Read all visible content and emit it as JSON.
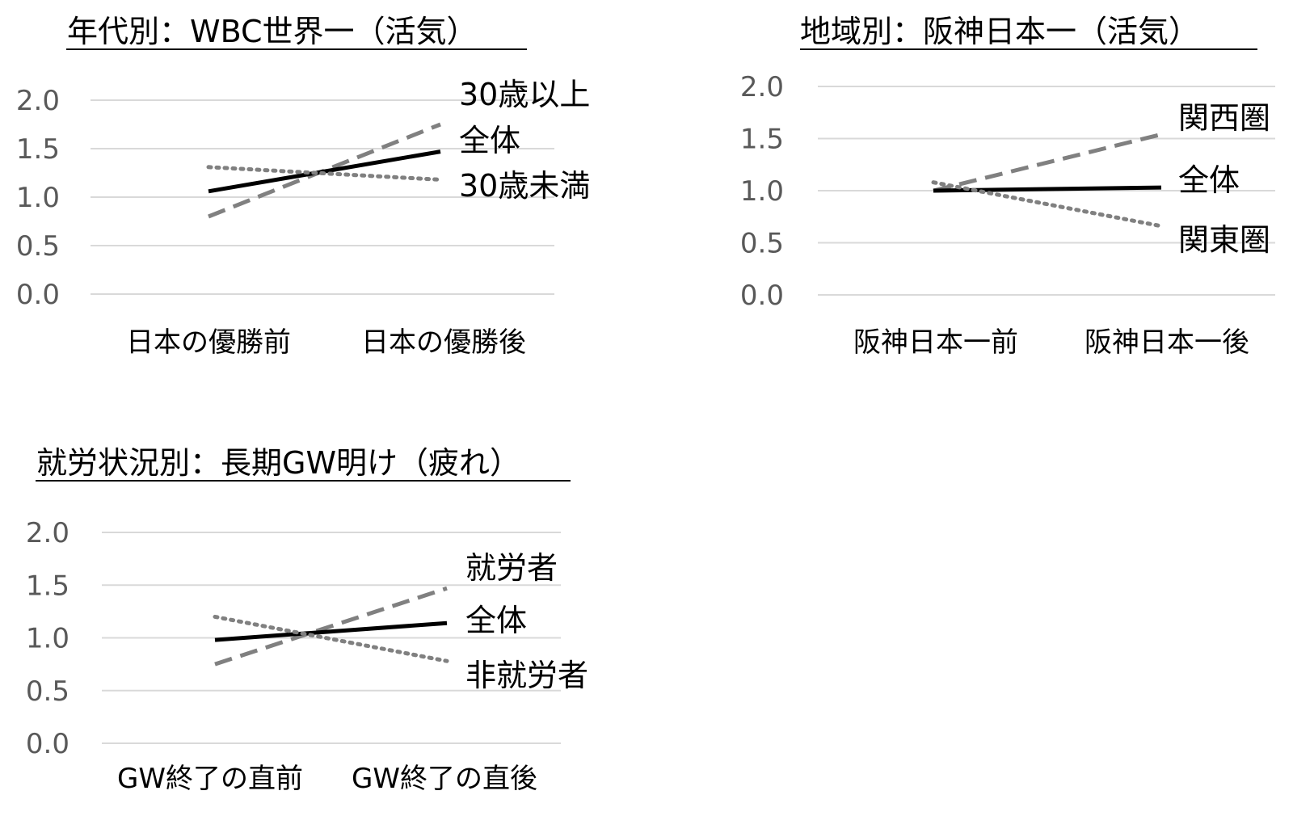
{
  "chart_data": [
    {
      "type": "line",
      "title": "年代別：WBC世界一（活気）",
      "categories": [
        "日本の優勝前",
        "日本の優勝後"
      ],
      "ylim": [
        0,
        2
      ],
      "yticks": [
        "2.0",
        "1.5",
        "1.0",
        "0.5",
        "0.0"
      ],
      "grid": true,
      "series": [
        {
          "name": "30歳以上",
          "values": [
            0.8,
            1.75
          ],
          "style": "dashed",
          "color": "#808080"
        },
        {
          "name": "全体",
          "values": [
            1.06,
            1.47
          ],
          "style": "solid",
          "color": "#000000"
        },
        {
          "name": "30歳未満",
          "values": [
            1.31,
            1.18
          ],
          "style": "dotted",
          "color": "#808080"
        }
      ]
    },
    {
      "type": "line",
      "title": "地域別：阪神日本一（活気）",
      "categories": [
        "阪神日本一前",
        "阪神日本一後"
      ],
      "ylim": [
        0,
        2
      ],
      "yticks": [
        "2.0",
        "1.5",
        "1.0",
        "0.5",
        "0.0"
      ],
      "grid": true,
      "series": [
        {
          "name": "関西圏",
          "values": [
            1.0,
            1.54
          ],
          "style": "dashed",
          "color": "#808080"
        },
        {
          "name": "全体",
          "values": [
            1.0,
            1.03
          ],
          "style": "solid",
          "color": "#000000"
        },
        {
          "name": "関東圏",
          "values": [
            1.08,
            0.66
          ],
          "style": "dotted",
          "color": "#808080"
        }
      ]
    },
    {
      "type": "line",
      "title": "就労状況別：長期GW明け（疲れ）",
      "categories": [
        "GW終了の直前",
        "GW終了の直後"
      ],
      "ylim": [
        0,
        2
      ],
      "yticks": [
        "2.0",
        "1.5",
        "1.0",
        "0.5",
        "0.0"
      ],
      "grid": true,
      "series": [
        {
          "name": "就労者",
          "values": [
            0.75,
            1.47
          ],
          "style": "dashed",
          "color": "#808080"
        },
        {
          "name": "全体",
          "values": [
            0.98,
            1.14
          ],
          "style": "solid",
          "color": "#000000"
        },
        {
          "name": "非就労者",
          "values": [
            1.2,
            0.78
          ],
          "style": "dotted",
          "color": "#808080"
        }
      ]
    }
  ]
}
